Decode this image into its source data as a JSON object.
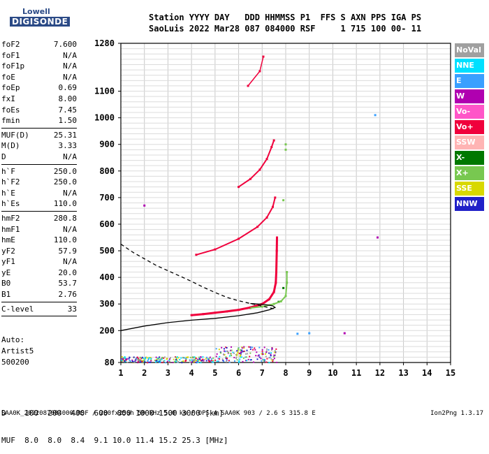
{
  "logo": {
    "top": "Lowell",
    "bottom": "DIGISONDE"
  },
  "header": {
    "line1": "Station YYYY DAY   DDD HHMMSS P1  FFS S AXN PPS IGA PS",
    "line2": "SaoLuis 2022 Mar28 087 084000 RSF     1 715 100 00- 11"
  },
  "params_groups": [
    [
      {
        "name": "foF2",
        "value": "7.600"
      },
      {
        "name": "foF1",
        "value": "N/A"
      },
      {
        "name": "foF1p",
        "value": "N/A"
      },
      {
        "name": "foE",
        "value": "N/A"
      },
      {
        "name": "foEp",
        "value": "0.69"
      },
      {
        "name": "fxI",
        "value": "8.00"
      },
      {
        "name": "foEs",
        "value": "7.45"
      },
      {
        "name": "fmin",
        "value": "1.50"
      }
    ],
    [
      {
        "name": "MUF(D)",
        "value": "25.31"
      },
      {
        "name": "M(D)",
        "value": "3.33"
      },
      {
        "name": "D",
        "value": "N/A"
      }
    ],
    [
      {
        "name": "h`F",
        "value": "250.0"
      },
      {
        "name": "h`F2",
        "value": "250.0"
      },
      {
        "name": "h`E",
        "value": "N/A"
      },
      {
        "name": "h`Es",
        "value": "110.0"
      }
    ],
    [
      {
        "name": "hmF2",
        "value": "280.8"
      },
      {
        "name": "hmF1",
        "value": "N/A"
      },
      {
        "name": "hmE",
        "value": "110.0"
      },
      {
        "name": "yF2",
        "value": "57.9"
      },
      {
        "name": "yF1",
        "value": "N/A"
      },
      {
        "name": "yE",
        "value": "20.0"
      },
      {
        "name": "B0",
        "value": "53.7"
      },
      {
        "name": "B1",
        "value": "2.76"
      }
    ],
    [
      {
        "name": "C-level",
        "value": "33"
      }
    ]
  ],
  "extra": {
    "line1": "Auto:",
    "line2": "Artist5",
    "line3": "500200"
  },
  "legend": [
    {
      "label": "NoVal",
      "color": "#a0a0a0"
    },
    {
      "label": "NNE",
      "color": "#00e0ff"
    },
    {
      "label": "E",
      "color": "#3aa0ff"
    },
    {
      "label": "W",
      "color": "#b000b0"
    },
    {
      "label": "Vo-",
      "color": "#ff55c8"
    },
    {
      "label": "Vo+",
      "color": "#f0003c"
    },
    {
      "label": "SSW",
      "color": "#ffb4b4"
    },
    {
      "label": "X-",
      "color": "#007800"
    },
    {
      "label": "X+",
      "color": "#78c850"
    },
    {
      "label": "SSE",
      "color": "#d8d800"
    },
    {
      "label": "NNW",
      "color": "#2020c8"
    }
  ],
  "dmuf": {
    "line1": "D    100  200  400  600  800 1000 1500 3000 [km]",
    "line2": "MUF  8.0  8.0  8.4  9.1 10.0 11.4 15.2 25.3 [MHz]"
  },
  "footer": {
    "left": "SAA0K_2022087084000.RSF / 280fx256h 50 kHz 5.0 km / DPS-4 SAA0K 903 / 2.6 S 315.8 E",
    "right": "Ion2Png 1.3.17"
  },
  "chart_data": {
    "type": "scatter",
    "xlim": [
      1,
      15
    ],
    "ylim": [
      80,
      1280
    ],
    "x_ticks": [
      1,
      2,
      3,
      4,
      5,
      6,
      7,
      8,
      9,
      10,
      11,
      12,
      13,
      14,
      15
    ],
    "y_ticks_labeled": [
      80,
      200,
      300,
      400,
      500,
      600,
      700,
      800,
      900,
      1000,
      1100,
      1280
    ],
    "grid": true,
    "series": [
      {
        "name": "Vo+",
        "color": "#f0003c",
        "points": [
          [
            4.0,
            258
          ],
          [
            4.5,
            262
          ],
          [
            5.0,
            267
          ],
          [
            5.5,
            272
          ],
          [
            6.0,
            278
          ],
          [
            6.5,
            287
          ],
          [
            7.0,
            300
          ],
          [
            7.3,
            318
          ],
          [
            7.5,
            345
          ],
          [
            7.58,
            380
          ],
          [
            7.6,
            420
          ],
          [
            7.62,
            500
          ],
          [
            7.63,
            550
          ],
          [
            4.2,
            485
          ],
          [
            5.0,
            505
          ],
          [
            6.0,
            545
          ],
          [
            6.8,
            590
          ],
          [
            7.2,
            625
          ],
          [
            7.45,
            665
          ],
          [
            7.55,
            700
          ],
          [
            6.0,
            740
          ],
          [
            6.5,
            770
          ],
          [
            6.9,
            805
          ],
          [
            7.2,
            845
          ],
          [
            7.4,
            890
          ],
          [
            7.5,
            915
          ],
          [
            6.4,
            1120
          ],
          [
            6.9,
            1175
          ],
          [
            7.05,
            1230
          ]
        ]
      },
      {
        "name": "X+",
        "color": "#78c850",
        "points": [
          [
            6.5,
            285
          ],
          [
            7.0,
            290
          ],
          [
            7.5,
            300
          ],
          [
            7.8,
            310
          ],
          [
            8.0,
            330
          ],
          [
            8.05,
            380
          ],
          [
            8.05,
            420
          ],
          [
            7.9,
            690
          ],
          [
            8.0,
            880
          ],
          [
            8.0,
            900
          ]
        ]
      },
      {
        "name": "X-",
        "color": "#007800",
        "points": [
          [
            7.7,
            308
          ],
          [
            7.9,
            360
          ]
        ]
      },
      {
        "name": "E",
        "color": "#3aa0ff",
        "points": [
          [
            8.5,
            188
          ],
          [
            9.0,
            190
          ],
          [
            11.8,
            1010
          ]
        ]
      },
      {
        "name": "W",
        "color": "#b000b0",
        "points": [
          [
            10.5,
            190
          ],
          [
            11.9,
            550
          ],
          [
            2.0,
            670
          ]
        ]
      }
    ],
    "lines": [
      {
        "name": "profile",
        "style": "solid",
        "points": [
          [
            1.0,
            200
          ],
          [
            2.0,
            217
          ],
          [
            3.0,
            230
          ],
          [
            4.0,
            239
          ],
          [
            5.0,
            246
          ],
          [
            6.0,
            256
          ],
          [
            6.8,
            267
          ],
          [
            7.3,
            278
          ],
          [
            7.55,
            287
          ],
          [
            7.45,
            293
          ],
          [
            7.0,
            299
          ],
          [
            6.5,
            302
          ]
        ]
      },
      {
        "name": "profile_extension",
        "style": "dashed",
        "points": [
          [
            1.0,
            525
          ],
          [
            1.5,
            495
          ],
          [
            2.0,
            470
          ],
          [
            2.5,
            445
          ],
          [
            3.0,
            425
          ],
          [
            3.5,
            405
          ],
          [
            4.0,
            385
          ],
          [
            4.5,
            363
          ],
          [
            5.0,
            343
          ],
          [
            5.5,
            325
          ],
          [
            6.0,
            312
          ],
          [
            6.5,
            302
          ],
          [
            7.0,
            292
          ],
          [
            7.5,
            282
          ]
        ]
      }
    ]
  }
}
